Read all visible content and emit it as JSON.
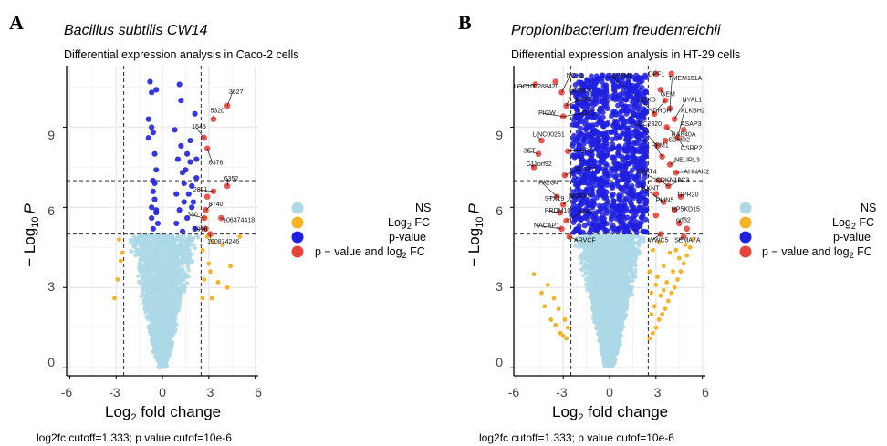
{
  "caption_cutoff": "log2fc cutoff=1.333; p value cutof=10e-6",
  "colors": {
    "NS": "#add8e6",
    "FC": "#f5b325",
    "P": "#2020e0",
    "PFC": "#e8453c"
  },
  "chart_data": [
    {
      "panel": "A",
      "type": "scatter",
      "title": "Bacillus subtilis CW14",
      "subtitle": "Differential expression analysis in Caco-2 cells",
      "caption": "log2fc cutoff=1.333; p value cutof=10e-6",
      "xlabel": "Log2 fold change",
      "ylabel": "-Log10 P",
      "xlim": [
        -6.2,
        6.2
      ],
      "ylim": [
        -0.3,
        11.3
      ],
      "xticks": [
        -6,
        -3,
        0,
        3,
        6
      ],
      "yticks": [
        0,
        3,
        6,
        9
      ],
      "vlines": [
        -2.5,
        2.5
      ],
      "hlines": [
        5.0,
        7.0
      ],
      "grid": true,
      "legend_position": "right",
      "legend": [
        {
          "key": "NS",
          "label": "NS"
        },
        {
          "key": "FC",
          "label": "Log2 FC"
        },
        {
          "key": "P",
          "label": "p-value"
        },
        {
          "key": "PFC",
          "label": "p - value and log2 FC"
        }
      ],
      "fc_points": [
        [
          -2.8,
          4.8
        ],
        [
          -2.6,
          4.3
        ],
        [
          -2.9,
          3.3
        ],
        [
          -3.1,
          2.6
        ],
        [
          -2.7,
          4.0
        ],
        [
          2.6,
          4.4
        ],
        [
          2.8,
          5.6
        ],
        [
          2.9,
          4.9
        ],
        [
          3.0,
          3.9
        ],
        [
          3.1,
          3.6
        ],
        [
          3.3,
          4.7
        ],
        [
          3.6,
          3.2
        ],
        [
          3.9,
          4.6
        ],
        [
          4.2,
          3.0
        ],
        [
          5.0,
          4.9
        ],
        [
          4.4,
          3.8
        ],
        [
          2.7,
          3.3
        ],
        [
          2.6,
          2.6
        ],
        [
          3.2,
          2.6
        ]
      ],
      "sig_points": [
        [
          -0.8,
          10.7
        ],
        [
          -0.7,
          10.3
        ],
        [
          -0.4,
          10.4
        ],
        [
          -0.9,
          9.3
        ],
        [
          -0.7,
          9.0
        ],
        [
          -0.6,
          8.8
        ],
        [
          -0.9,
          8.6
        ],
        [
          -0.5,
          8.0
        ],
        [
          -0.4,
          7.4
        ],
        [
          -0.6,
          6.6
        ],
        [
          -0.5,
          6.3
        ],
        [
          -0.7,
          6.0
        ],
        [
          -0.4,
          5.8
        ],
        [
          -0.7,
          5.6
        ],
        [
          -0.3,
          5.4
        ],
        [
          -0.6,
          5.2
        ],
        [
          -0.4,
          5.9
        ],
        [
          -0.6,
          7.0
        ],
        [
          -0.5,
          6.9
        ],
        [
          1.1,
          10.6
        ],
        [
          1.2,
          10.0
        ],
        [
          0.8,
          8.9
        ],
        [
          1.2,
          8.3
        ],
        [
          1.0,
          7.8
        ],
        [
          1.3,
          7.3
        ],
        [
          1.8,
          7.7
        ],
        [
          1.5,
          7.4
        ],
        [
          1.9,
          6.8
        ],
        [
          1.7,
          6.5
        ],
        [
          2.0,
          6.2
        ],
        [
          1.4,
          6.2
        ],
        [
          1.1,
          5.9
        ],
        [
          0.9,
          5.4
        ],
        [
          1.3,
          5.1
        ],
        [
          1.6,
          5.6
        ],
        [
          2.2,
          7.1
        ],
        [
          1.9,
          6.0
        ],
        [
          2.1,
          5.2
        ],
        [
          1.4,
          6.9
        ],
        [
          0.9,
          6.5
        ],
        [
          1.8,
          8.5
        ],
        [
          2.1,
          9.5
        ],
        [
          1.6,
          8.0
        ],
        [
          2.2,
          7.8
        ]
      ],
      "sigfc_points": [
        [
          4.2,
          9.8
        ],
        [
          3.3,
          9.3
        ],
        [
          2.7,
          8.6
        ],
        [
          2.9,
          8.2
        ],
        [
          4.2,
          6.8
        ],
        [
          3.3,
          6.6
        ],
        [
          2.8,
          5.9
        ],
        [
          2.7,
          5.6
        ],
        [
          2.8,
          5.2
        ],
        [
          3.8,
          5.6
        ],
        [
          3.1,
          5.0
        ],
        [
          2.9,
          6.4
        ]
      ],
      "labels": [
        {
          "text": "3627",
          "px": 4.2,
          "py": 9.8,
          "tx": 4.3,
          "ty": 10.25
        },
        {
          "text": "5320",
          "px": 3.3,
          "py": 9.3,
          "tx": 3.1,
          "ty": 9.55
        },
        {
          "text": "1545",
          "px": 2.7,
          "py": 8.6,
          "tx": 1.9,
          "ty": 8.95
        },
        {
          "text": "6376",
          "px": 2.9,
          "py": 8.2,
          "tx": 3.0,
          "ty": 7.6
        },
        {
          "text": "6352",
          "px": 4.2,
          "py": 6.8,
          "tx": 4.0,
          "ty": 7.0
        },
        {
          "text": "2821",
          "px": 3.3,
          "py": 6.6,
          "tx": 2.0,
          "ty": 6.6
        },
        {
          "text": "8740",
          "px": 2.8,
          "py": 5.9,
          "tx": 3.0,
          "ty": 6.05
        },
        {
          "text": "330",
          "px": 2.7,
          "py": 5.6,
          "tx": 1.6,
          "ty": 5.65
        },
        {
          "text": "106374418",
          "px": 3.8,
          "py": 5.6,
          "tx": 3.9,
          "ty": 5.45
        },
        {
          "text": "2916",
          "px": 2.8,
          "py": 5.2,
          "tx": 2.0,
          "ty": 5.1
        },
        {
          "text": "100874246",
          "px": 3.1,
          "py": 5.0,
          "tx": 2.9,
          "ty": 4.65
        }
      ]
    },
    {
      "panel": "B",
      "type": "scatter",
      "title": "Propionibacterium freudenreichii",
      "subtitle": "Differential expression analysis in HT-29 cells",
      "caption": "log2fc cutoff=1.333; p value cutof=10e-6",
      "xlabel": "Log2 fold change",
      "ylabel": "-Log10 P",
      "xlim": [
        -6.2,
        6.2
      ],
      "ylim": [
        -0.3,
        11.3
      ],
      "xticks": [
        -6,
        -3,
        0,
        3,
        6
      ],
      "yticks": [
        0,
        3,
        6,
        9
      ],
      "vlines": [
        -2.5,
        2.5
      ],
      "hlines": [
        5.0,
        7.0
      ],
      "grid": true,
      "legend_position": "right",
      "legend": [
        {
          "key": "NS",
          "label": "NS"
        },
        {
          "key": "FC",
          "label": "Log2 FC"
        },
        {
          "key": "P",
          "label": "p-value"
        },
        {
          "key": "PFC",
          "label": "p - value and log2 FC"
        }
      ],
      "fc_points": [
        [
          -4.9,
          3.5
        ],
        [
          -4.4,
          2.8
        ],
        [
          -4.2,
          2.3
        ],
        [
          -3.8,
          1.8
        ],
        [
          -3.5,
          1.6
        ],
        [
          -3.2,
          1.3
        ],
        [
          -3.0,
          1.2
        ],
        [
          -2.8,
          1.1
        ],
        [
          -3.6,
          2.6
        ],
        [
          -3.3,
          2.2
        ],
        [
          -2.9,
          1.8
        ],
        [
          -4.0,
          3.1
        ],
        [
          -2.7,
          1.5
        ],
        [
          2.6,
          1.1
        ],
        [
          2.8,
          1.3
        ],
        [
          3.0,
          1.5
        ],
        [
          3.2,
          1.8
        ],
        [
          3.4,
          2.0
        ],
        [
          3.6,
          2.2
        ],
        [
          3.8,
          2.5
        ],
        [
          4.0,
          2.8
        ],
        [
          4.2,
          3.0
        ],
        [
          4.4,
          3.3
        ],
        [
          4.6,
          3.6
        ],
        [
          4.8,
          3.9
        ],
        [
          5.0,
          4.2
        ],
        [
          5.2,
          4.5
        ],
        [
          5.4,
          4.8
        ],
        [
          2.9,
          2.3
        ],
        [
          3.3,
          2.7
        ],
        [
          3.7,
          3.2
        ],
        [
          4.1,
          3.6
        ],
        [
          4.5,
          4.1
        ],
        [
          4.9,
          4.6
        ],
        [
          3.1,
          3.4
        ],
        [
          3.5,
          3.8
        ],
        [
          3.9,
          4.3
        ],
        [
          2.7,
          2.8
        ],
        [
          3.0,
          3.1
        ],
        [
          2.6,
          3.6
        ],
        [
          2.8,
          4.4
        ],
        [
          3.2,
          4.7
        ],
        [
          2.7,
          2.0
        ],
        [
          3.5,
          2.9
        ],
        [
          4.3,
          4.4
        ]
      ],
      "sigfc_points": [
        [
          -4.8,
          10.6
        ],
        [
          -4.4,
          8.5
        ],
        [
          -4.6,
          8.0
        ],
        [
          -4.9,
          7.5
        ],
        [
          -3.5,
          10.7
        ],
        [
          -3.1,
          10.3
        ],
        [
          -2.8,
          9.8
        ],
        [
          -3.0,
          9.4
        ],
        [
          -2.7,
          8.1
        ],
        [
          -2.9,
          7.2
        ],
        [
          -3.4,
          6.4
        ],
        [
          -3.0,
          6.1
        ],
        [
          -3.2,
          5.8
        ],
        [
          -2.8,
          5.5
        ],
        [
          -3.1,
          5.2
        ],
        [
          -2.6,
          4.9
        ],
        [
          3.0,
          11.0
        ],
        [
          3.3,
          10.4
        ],
        [
          3.6,
          10.0
        ],
        [
          3.9,
          9.7
        ],
        [
          4.2,
          9.3
        ],
        [
          3.7,
          9.0
        ],
        [
          4.4,
          8.6
        ],
        [
          3.1,
          8.3
        ],
        [
          3.4,
          7.9
        ],
        [
          3.9,
          7.6
        ],
        [
          4.3,
          7.3
        ],
        [
          3.2,
          7.0
        ],
        [
          3.8,
          6.8
        ],
        [
          4.6,
          6.4
        ],
        [
          3.5,
          6.2
        ],
        [
          4.2,
          5.9
        ],
        [
          3.0,
          5.7
        ],
        [
          4.5,
          5.4
        ],
        [
          5.0,
          5.2
        ],
        [
          3.3,
          5.0
        ],
        [
          4.8,
          4.9
        ],
        [
          2.9,
          9.5
        ],
        [
          4.0,
          11.0
        ],
        [
          3.6,
          8.5
        ],
        [
          4.8,
          8.9
        ],
        [
          3.0,
          6.5
        ]
      ],
      "labels": [
        {
          "text": "NOX1",
          "px": -3.1,
          "py": 10.3,
          "tx": -2.8,
          "ty": 10.85
        },
        {
          "text": "LOC100288420",
          "px": -4.8,
          "py": 10.6,
          "tx": -6.2,
          "ty": 10.45
        },
        {
          "text": "HOXC9",
          "px": -2.8,
          "py": 9.8,
          "tx": -2.6,
          "ty": 10.3
        },
        {
          "text": "NTF5",
          "px": -2.8,
          "py": 9.8,
          "tx": -2.2,
          "ty": 9.95
        },
        {
          "text": "PIGW",
          "px": -3.0,
          "py": 9.4,
          "tx": -4.6,
          "ty": 9.45
        },
        {
          "text": "LOC1",
          "px": -3.0,
          "py": 9.4,
          "tx": -2.0,
          "ty": 9.45
        },
        {
          "text": "LINC00261",
          "px": -4.4,
          "py": 8.5,
          "tx": -5.0,
          "ty": 8.65
        },
        {
          "text": "SET",
          "px": -4.6,
          "py": 8.0,
          "tx": -5.6,
          "ty": 8.05
        },
        {
          "text": "EPC",
          "px": -2.7,
          "py": 8.1,
          "tx": -1.9,
          "ty": 8.05
        },
        {
          "text": "C11orf92",
          "px": -4.9,
          "py": 7.5,
          "tx": -5.4,
          "ty": 7.55
        },
        {
          "text": "FLJ387",
          "px": -2.9,
          "py": 7.2,
          "tx": -2.2,
          "ty": 7.35
        },
        {
          "text": "PA2G4",
          "px": -3.4,
          "py": 6.4,
          "tx": -4.6,
          "ty": 6.85
        },
        {
          "text": "STX19",
          "px": -3.4,
          "py": 6.4,
          "tx": -4.2,
          "ty": 6.25
        },
        {
          "text": "HOXA5",
          "px": -3.0,
          "py": 6.1,
          "tx": -2.6,
          "ty": 6.35
        },
        {
          "text": "PRDM10",
          "px": -3.2,
          "py": 5.8,
          "tx": -4.2,
          "ty": 5.8
        },
        {
          "text": "ANG",
          "px": -2.8,
          "py": 5.5,
          "tx": -2.0,
          "ty": 5.75
        },
        {
          "text": "NACAP1",
          "px": -3.1,
          "py": 5.2,
          "tx": -4.9,
          "ty": 5.25
        },
        {
          "text": "ARVCF",
          "px": -2.6,
          "py": 4.9,
          "tx": -2.3,
          "ty": 4.7
        },
        {
          "text": "ZSWIM6",
          "px": 0.9,
          "py": 10.5,
          "tx": -0.1,
          "ty": 10.85
        },
        {
          "text": "DPF1",
          "px": 3.0,
          "py": 11.0,
          "tx": 2.5,
          "ty": 10.9
        },
        {
          "text": "TMEM151A",
          "px": 3.9,
          "py": 9.7,
          "tx": 3.8,
          "ty": 10.75
        },
        {
          "text": "GEM",
          "px": 3.3,
          "py": 10.4,
          "tx": 3.3,
          "ty": 10.15
        },
        {
          "text": "HYAL1",
          "px": 4.2,
          "py": 9.3,
          "tx": 4.7,
          "ty": 9.95
        },
        {
          "text": "HOXD",
          "px": 2.9,
          "py": 9.5,
          "tx": 1.8,
          "ty": 9.95
        },
        {
          "text": "DHDH",
          "px": 3.6,
          "py": 10.0,
          "tx": 2.8,
          "ty": 9.55
        },
        {
          "text": "ALKBH2",
          "px": 4.4,
          "py": 8.6,
          "tx": 4.6,
          "ty": 9.55
        },
        {
          "text": "ASAP3",
          "px": 4.8,
          "py": 8.9,
          "tx": 4.6,
          "ty": 9.05
        },
        {
          "text": "LOC2320",
          "px": 3.1,
          "py": 8.3,
          "tx": 1.6,
          "ty": 9.05
        },
        {
          "text": "RAB40A",
          "px": 3.7,
          "py": 9.0,
          "tx": 4.0,
          "ty": 8.65
        },
        {
          "text": "SDHR2",
          "px": 3.6,
          "py": 8.5,
          "tx": 3.8,
          "ty": 8.45
        },
        {
          "text": "PPM1",
          "px": 3.4,
          "py": 7.9,
          "tx": 2.7,
          "ty": 8.25
        },
        {
          "text": "CSRP2",
          "px": 4.4,
          "py": 8.6,
          "tx": 4.6,
          "ty": 8.15
        },
        {
          "text": "NEURL3",
          "px": 3.9,
          "py": 7.6,
          "tx": 4.2,
          "ty": 7.7
        },
        {
          "text": "AHNAK2",
          "px": 4.3,
          "py": 7.3,
          "tx": 4.8,
          "ty": 7.25
        },
        {
          "text": "SPAT4",
          "px": 3.2,
          "py": 7.0,
          "tx": 1.8,
          "ty": 7.25
        },
        {
          "text": "CDKN1A",
          "px": 3.8,
          "py": 6.8,
          "tx": 3.0,
          "ty": 6.95
        },
        {
          "text": "LC3",
          "px": 3.8,
          "py": 6.8,
          "tx": 4.4,
          "ty": 6.95
        },
        {
          "text": "IKKNT",
          "px": 3.5,
          "py": 6.2,
          "tx": 2.0,
          "ty": 6.65
        },
        {
          "text": "GPR20",
          "px": 4.6,
          "py": 6.4,
          "tx": 4.4,
          "ty": 6.4
        },
        {
          "text": "PLIN5",
          "px": 3.5,
          "py": 6.2,
          "tx": 3.0,
          "ty": 6.2
        },
        {
          "text": "HP5KD15",
          "px": 4.2,
          "py": 5.9,
          "tx": 4.0,
          "ty": 5.85
        },
        {
          "text": "orf82",
          "px": 4.5,
          "py": 5.4,
          "tx": 4.3,
          "ty": 5.45
        },
        {
          "text": "WWC5",
          "px": 3.3,
          "py": 5.0,
          "tx": 2.5,
          "ty": 4.7
        },
        {
          "text": "SEMA7A",
          "px": 4.8,
          "py": 4.9,
          "tx": 4.2,
          "ty": 4.7
        }
      ]
    }
  ],
  "panels": [
    {
      "letter": "A",
      "title": "Bacillus subtilis CW14",
      "subtitle": "Differential expression analysis in Caco-2 cells",
      "xlabel_main": "Log",
      "xlabel_sub": "2",
      "xlabel_rest": " fold change",
      "ylabel_main": "− Log",
      "ylabel_sub": "10",
      "ylabel_var": "P",
      "xtick_labels": [
        "-6",
        "-3",
        "0",
        "3",
        "6"
      ],
      "ytick_labels": [
        "0",
        "3",
        "6",
        "9"
      ],
      "legend": {
        "ns": "NS",
        "fc_main": "Log",
        "fc_sub": "2",
        "fc_rest": " FC",
        "p": "p-value",
        "pfc_main": "p − value and log",
        "pfc_sub": "2",
        "pfc_rest": " FC"
      }
    },
    {
      "letter": "B",
      "title": "Propionibacterium freudenreichii",
      "subtitle": "Differential expression analysis in HT-29 cells",
      "xlabel_main": "Log",
      "xlabel_sub": "2",
      "xlabel_rest": " fold change",
      "ylabel_main": "− Log",
      "ylabel_sub": "10",
      "ylabel_var": "P",
      "xtick_labels": [
        "-6",
        "-3",
        "0",
        "3",
        "6"
      ],
      "ytick_labels": [
        "0",
        "3",
        "6",
        "9"
      ],
      "legend": {
        "ns": "NS",
        "fc_main": "Log",
        "fc_sub": "2",
        "fc_rest": " FC",
        "p": "p-value",
        "pfc_main": "p − value and log",
        "pfc_sub": "2",
        "pfc_rest": " FC"
      }
    }
  ]
}
